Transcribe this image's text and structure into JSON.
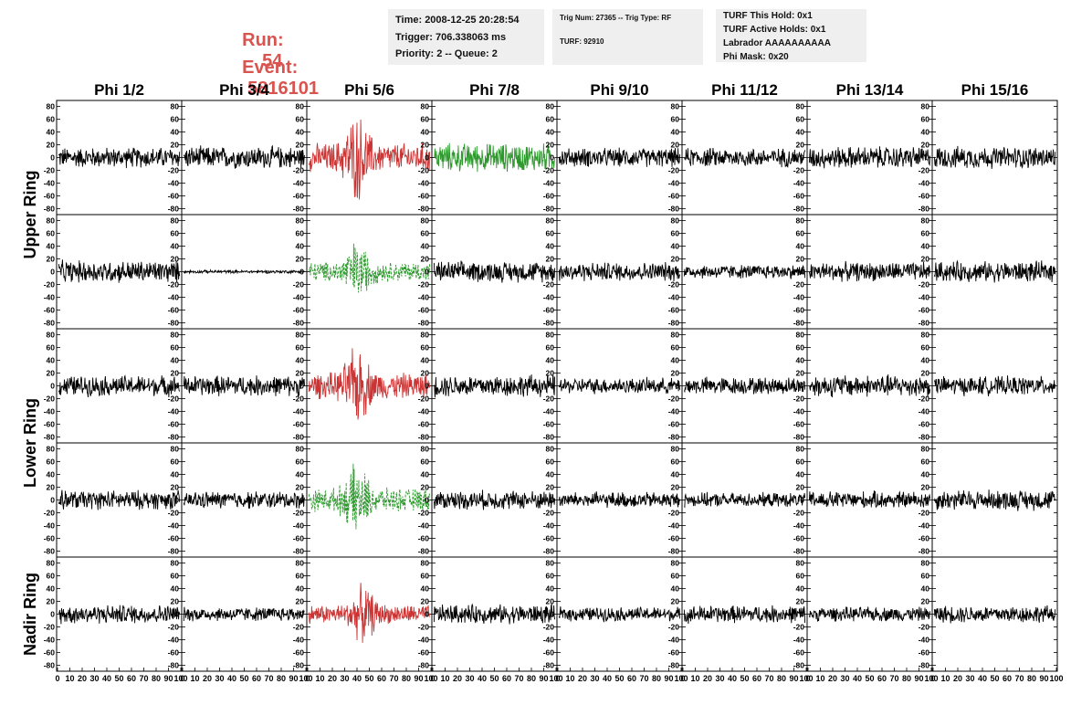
{
  "header": {
    "run_label": "Run:",
    "run_value": "54",
    "event_label": "Event:",
    "event_value": "5816101",
    "box1": [
      "Time: 2008-12-25 20:28:54",
      "Trigger: 706.338063 ms",
      "Priority: 2 -- Queue: 2"
    ],
    "box2": [
      "Trig Num: 27365 -- Trig Type: RF",
      "TURF: 92910"
    ],
    "box3": [
      "TURF This Hold: 0x1",
      "TURF Active Holds: 0x1",
      "Labrador AAAAAAAAAA",
      "Phi Mask: 0x20"
    ]
  },
  "colors": {
    "normal": "#000000",
    "triggered": "#cc3333",
    "triggered_alt": "#2e9a2e",
    "title_text": "#d9534f",
    "box_bg": "#efefef"
  },
  "chart_data": {
    "type": "line",
    "column_titles": [
      "Phi 1/2",
      "Phi 3/4",
      "Phi 5/6",
      "Phi 7/8",
      "Phi 9/10",
      "Phi 11/12",
      "Phi 13/14",
      "Phi 15/16"
    ],
    "row_titles": [
      "Upper Ring",
      "Lower Ring",
      "Nadir Ring"
    ],
    "xlim": [
      0,
      100
    ],
    "ylim": [
      -85,
      85
    ],
    "x_ticks": [
      "0",
      "10",
      "20",
      "30",
      "40",
      "50",
      "60",
      "70",
      "80",
      "90",
      "100"
    ],
    "y_ticks": [
      "80",
      "60",
      "40",
      "20",
      "0",
      "-20",
      "-40",
      "-60",
      "-80"
    ],
    "panel_rows": 5,
    "panels": [
      {
        "row": 0,
        "col": 0,
        "amp": 13,
        "style": "normal"
      },
      {
        "row": 0,
        "col": 1,
        "amp": 14,
        "style": "normal"
      },
      {
        "row": 0,
        "col": 2,
        "amp": 20,
        "style": "triggered",
        "burst": 40
      },
      {
        "row": 0,
        "col": 3,
        "amp": 18,
        "style": "triggered_alt"
      },
      {
        "row": 0,
        "col": 4,
        "amp": 12,
        "style": "normal"
      },
      {
        "row": 0,
        "col": 5,
        "amp": 12,
        "style": "normal"
      },
      {
        "row": 0,
        "col": 6,
        "amp": 14,
        "style": "normal"
      },
      {
        "row": 0,
        "col": 7,
        "amp": 14,
        "style": "normal"
      },
      {
        "row": 1,
        "col": 0,
        "amp": 14,
        "style": "normal"
      },
      {
        "row": 1,
        "col": 1,
        "amp": 2,
        "style": "normal"
      },
      {
        "row": 1,
        "col": 2,
        "amp": 14,
        "style": "triggered_alt_dashed",
        "burst": 40
      },
      {
        "row": 1,
        "col": 3,
        "amp": 13,
        "style": "normal"
      },
      {
        "row": 1,
        "col": 4,
        "amp": 12,
        "style": "normal"
      },
      {
        "row": 1,
        "col": 5,
        "amp": 9,
        "style": "normal"
      },
      {
        "row": 1,
        "col": 6,
        "amp": 12,
        "style": "normal"
      },
      {
        "row": 1,
        "col": 7,
        "amp": 13,
        "style": "normal"
      },
      {
        "row": 2,
        "col": 0,
        "amp": 13,
        "style": "normal"
      },
      {
        "row": 2,
        "col": 1,
        "amp": 13,
        "style": "normal"
      },
      {
        "row": 2,
        "col": 2,
        "amp": 18,
        "style": "triggered",
        "burst": 40
      },
      {
        "row": 2,
        "col": 3,
        "amp": 14,
        "style": "normal"
      },
      {
        "row": 2,
        "col": 4,
        "amp": 10,
        "style": "normal"
      },
      {
        "row": 2,
        "col": 5,
        "amp": 11,
        "style": "normal"
      },
      {
        "row": 2,
        "col": 6,
        "amp": 14,
        "style": "normal"
      },
      {
        "row": 2,
        "col": 7,
        "amp": 12,
        "style": "normal"
      },
      {
        "row": 3,
        "col": 0,
        "amp": 12,
        "style": "normal"
      },
      {
        "row": 3,
        "col": 1,
        "amp": 11,
        "style": "normal"
      },
      {
        "row": 3,
        "col": 2,
        "amp": 16,
        "style": "triggered_alt_dashed",
        "burst": 40
      },
      {
        "row": 3,
        "col": 3,
        "amp": 12,
        "style": "normal"
      },
      {
        "row": 3,
        "col": 4,
        "amp": 10,
        "style": "normal"
      },
      {
        "row": 3,
        "col": 5,
        "amp": 9,
        "style": "normal"
      },
      {
        "row": 3,
        "col": 6,
        "amp": 11,
        "style": "normal"
      },
      {
        "row": 3,
        "col": 7,
        "amp": 13,
        "style": "normal"
      },
      {
        "row": 4,
        "col": 0,
        "amp": 12,
        "style": "normal"
      },
      {
        "row": 4,
        "col": 1,
        "amp": 9,
        "style": "normal"
      },
      {
        "row": 4,
        "col": 2,
        "amp": 13,
        "style": "triggered",
        "burst": 45
      },
      {
        "row": 4,
        "col": 3,
        "amp": 12,
        "style": "normal"
      },
      {
        "row": 4,
        "col": 4,
        "amp": 9,
        "style": "normal"
      },
      {
        "row": 4,
        "col": 5,
        "amp": 11,
        "style": "normal"
      },
      {
        "row": 4,
        "col": 6,
        "amp": 9,
        "style": "normal"
      },
      {
        "row": 4,
        "col": 7,
        "amp": 11,
        "style": "normal"
      }
    ]
  }
}
